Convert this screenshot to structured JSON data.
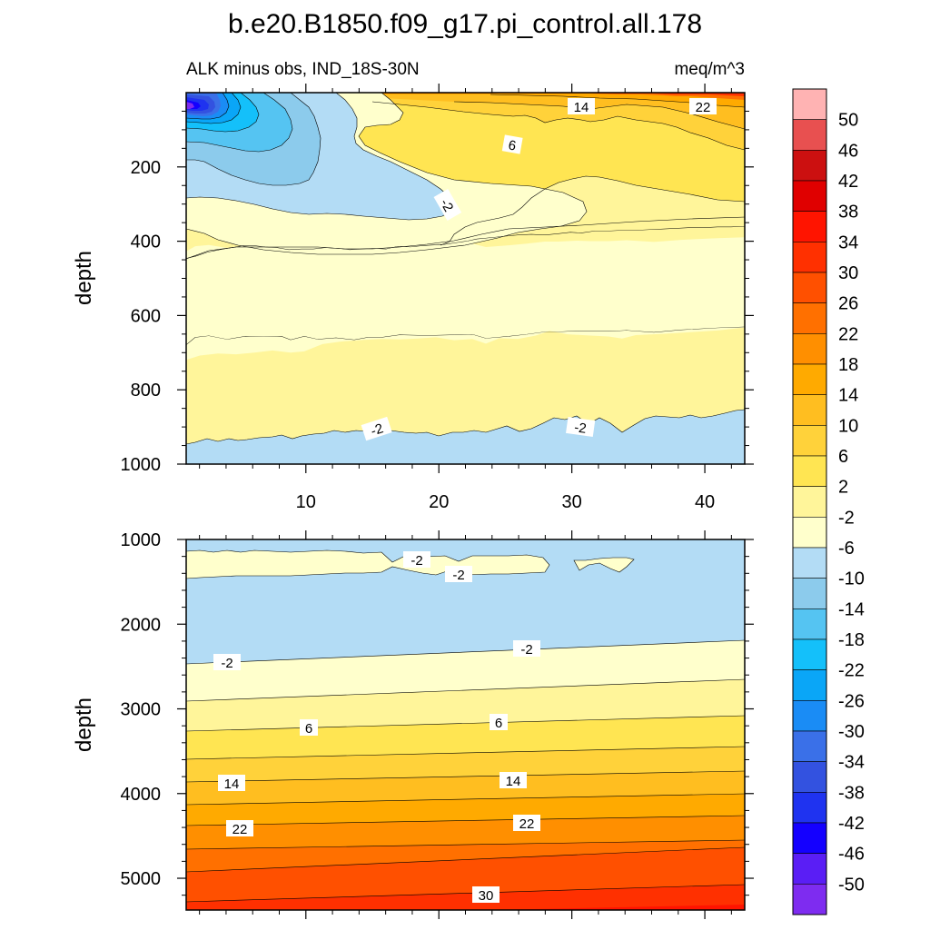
{
  "chart_data": {
    "type": "contour",
    "title": "b.e20.B1850.f09_g17.pi_control.all.178",
    "subtitle_left": "ALK minus obs, IND_18S-30N",
    "subtitle_right": "meq/m^3",
    "colorbar": {
      "levels": [
        -50,
        -46,
        -42,
        -38,
        -34,
        -30,
        -26,
        -22,
        -18,
        -14,
        -10,
        -6,
        -2,
        2,
        6,
        10,
        14,
        18,
        22,
        26,
        30,
        34,
        38,
        42,
        46,
        50
      ],
      "labels": [
        "50",
        "46",
        "42",
        "38",
        "34",
        "30",
        "26",
        "22",
        "18",
        "14",
        "10",
        "6",
        "2",
        "-2",
        "-6",
        "-10",
        "-14",
        "-18",
        "-22",
        "-26",
        "-30",
        "-34",
        "-38",
        "-42",
        "-46",
        "-50"
      ],
      "colors": [
        "#7e2cf0",
        "#5a1ef5",
        "#1400ff",
        "#1f33f0",
        "#3352e0",
        "#3a70e8",
        "#1a8cf5",
        "#0aa6f7",
        "#14c0fa",
        "#55c4f2",
        "#8ccbec",
        "#b3dcf5",
        "#ffffcc",
        "#fff59a",
        "#ffe552",
        "#ffd23a",
        "#ffbe20",
        "#ffaa00",
        "#ff8f00",
        "#ff7000",
        "#ff5000",
        "#ff3000",
        "#ff1400",
        "#e00000",
        "#cc1010",
        "#e85050",
        "#ffb3b3"
      ]
    },
    "top_panel": {
      "ylabel": "depth",
      "yticks": [
        "200",
        "400",
        "600",
        "800",
        "1000"
      ],
      "xticks": [
        "10",
        "20",
        "30",
        "40"
      ],
      "ylim": [
        0,
        1000
      ],
      "xlim": [
        1,
        43
      ],
      "contour_labels": [
        "14",
        "22",
        "6",
        "-2",
        "-2",
        "-2"
      ]
    },
    "bottom_panel": {
      "ylabel": "depth",
      "yticks": [
        "1000",
        "2000",
        "3000",
        "4000",
        "5000"
      ],
      "ylim": [
        1000,
        5375
      ],
      "xlim": [
        1,
        43
      ],
      "contour_labels": [
        "-2",
        "-2",
        "-2",
        "-2",
        "6",
        "6",
        "14",
        "14",
        "22",
        "22",
        "30"
      ]
    }
  }
}
